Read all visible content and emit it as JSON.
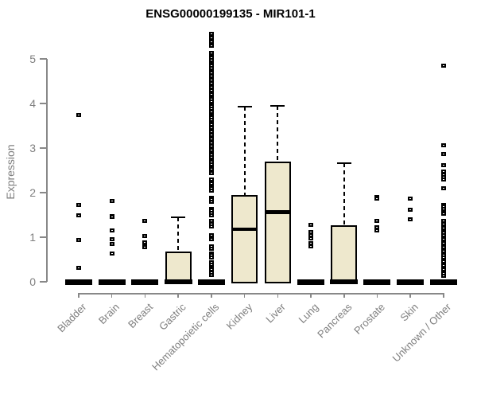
{
  "title": "ENSG00000199135 - MIR101-1",
  "chart_data": {
    "type": "boxplot",
    "title": "ENSG00000199135 - MIR101-1",
    "xlabel": "",
    "ylabel": "Expression",
    "ylim": [
      0,
      5.6
    ],
    "yticks": [
      0,
      1,
      2,
      3,
      4,
      5
    ],
    "grid": false,
    "legend": "none",
    "box_fill_color": "#EEE8CD",
    "box_border_color": "#000000",
    "axis_color": "#888888",
    "tick_label_color": "#7f7f7f",
    "categories": [
      "Bladder",
      "Brain",
      "Breast",
      "Gastric",
      "Hematopoietic cells",
      "Kidney",
      "Liver",
      "Lung",
      "Pancreas",
      "Prostate",
      "Skin",
      "Unknown / Other"
    ],
    "boxes": [
      {
        "name": "Bladder",
        "q1": 0,
        "median": 0,
        "q3": 0,
        "whisker_low": 0,
        "whisker_high": 0,
        "outliers": [
          3.75,
          1.73,
          1.5,
          0.93,
          0.32
        ]
      },
      {
        "name": "Brain",
        "q1": 0,
        "median": 0,
        "q3": 0,
        "whisker_low": 0,
        "whisker_high": 0,
        "outliers": [
          1.82,
          1.48,
          1.45,
          1.16,
          0.95,
          0.84,
          0.64
        ]
      },
      {
        "name": "Breast",
        "q1": 0,
        "median": 0,
        "q3": 0,
        "whisker_low": 0,
        "whisker_high": 0,
        "outliers": [
          1.36,
          1.02,
          0.88,
          0.81,
          0.77
        ]
      },
      {
        "name": "Gastric",
        "q1": 0,
        "median": 0,
        "q3": 0.68,
        "whisker_low": 0,
        "whisker_high": 1.45,
        "outliers": []
      },
      {
        "name": "Hematopoietic cells",
        "q1": 0,
        "median": 0,
        "q3": 0,
        "whisker_low": 0,
        "whisker_high": 0,
        "outliers": [
          5.57,
          5.48,
          5.39,
          5.33,
          5.29,
          5.13,
          5.07,
          5.02,
          4.98,
          4.89,
          4.84,
          4.79,
          4.73,
          4.68,
          4.62,
          4.57,
          4.52,
          4.46,
          4.41,
          4.36,
          4.3,
          4.25,
          4.2,
          4.14,
          4.09,
          4.04,
          3.98,
          3.93,
          3.88,
          3.82,
          3.73,
          3.68,
          3.63,
          3.57,
          3.52,
          3.46,
          3.41,
          3.36,
          3.3,
          3.25,
          3.2,
          3.11,
          3.05,
          3.0,
          2.95,
          2.89,
          2.84,
          2.79,
          2.73,
          2.68,
          2.63,
          2.57,
          2.52,
          2.48,
          2.43,
          2.3,
          2.25,
          2.2,
          2.14,
          2.09,
          2.04,
          1.89,
          1.84,
          1.79,
          1.64,
          1.59,
          1.54,
          1.5,
          1.36,
          1.3,
          1.25,
          1.05,
          1.0,
          0.96,
          0.8,
          0.75,
          0.64,
          0.59,
          0.54,
          0.43,
          0.38,
          0.32,
          0.27,
          0.21,
          0.16
        ]
      },
      {
        "name": "Kidney",
        "q1": 0,
        "median": 1.18,
        "q3": 1.95,
        "whisker_low": 0,
        "whisker_high": 3.93,
        "outliers": []
      },
      {
        "name": "Liver",
        "q1": 0,
        "median": 1.57,
        "q3": 2.7,
        "whisker_low": 0,
        "whisker_high": 3.95,
        "outliers": []
      },
      {
        "name": "Lung",
        "q1": 0,
        "median": 0,
        "q3": 0,
        "whisker_low": 0,
        "whisker_high": 0,
        "outliers": [
          1.27,
          1.11,
          1.05,
          0.98,
          0.86,
          0.79
        ]
      },
      {
        "name": "Pancreas",
        "q1": 0,
        "median": 0,
        "q3": 1.27,
        "whisker_low": 0,
        "whisker_high": 2.66,
        "outliers": []
      },
      {
        "name": "Prostate",
        "q1": 0,
        "median": 0,
        "q3": 0,
        "whisker_low": 0,
        "whisker_high": 0,
        "outliers": [
          1.91,
          1.86,
          1.36,
          1.23,
          1.16
        ]
      },
      {
        "name": "Skin",
        "q1": 0,
        "median": 0,
        "q3": 0,
        "whisker_low": 0,
        "whisker_high": 0,
        "outliers": [
          1.86,
          1.61,
          1.41
        ]
      },
      {
        "name": "Unknown / Other",
        "q1": 0,
        "median": 0,
        "q3": 0,
        "whisker_low": 0,
        "whisker_high": 0,
        "outliers": [
          4.84,
          3.07,
          2.86,
          2.61,
          2.48,
          2.41,
          2.34,
          2.29,
          2.09,
          1.73,
          1.68,
          1.63,
          1.57,
          1.52,
          1.36,
          1.3,
          1.25,
          1.2,
          1.14,
          1.09,
          1.05,
          1.0,
          0.95,
          0.91,
          0.86,
          0.82,
          0.77,
          0.73,
          0.68,
          0.64,
          0.59,
          0.55,
          0.5,
          0.45,
          0.41,
          0.36,
          0.32,
          0.27,
          0.23,
          0.18,
          0.13
        ]
      }
    ]
  }
}
